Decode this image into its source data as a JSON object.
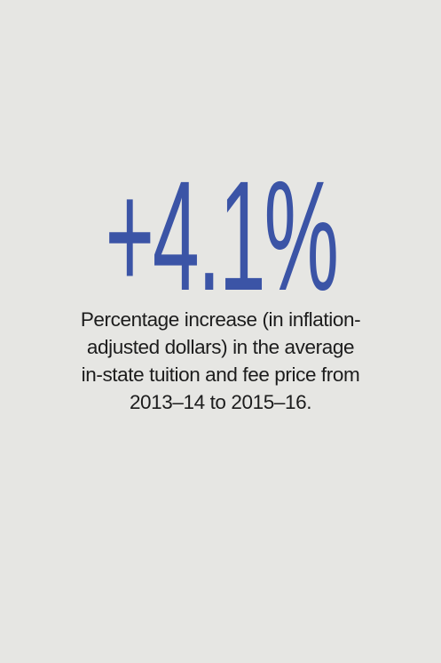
{
  "stat": {
    "value": "+4.1%",
    "color": "#3b54a6"
  },
  "caption": {
    "lines": [
      "Percentage increase (in inflation-",
      "adjusted dollars) in the average",
      "in-state tuition and fee price from",
      "2013–14 to 2015–16."
    ]
  },
  "background": "#e6e6e3"
}
